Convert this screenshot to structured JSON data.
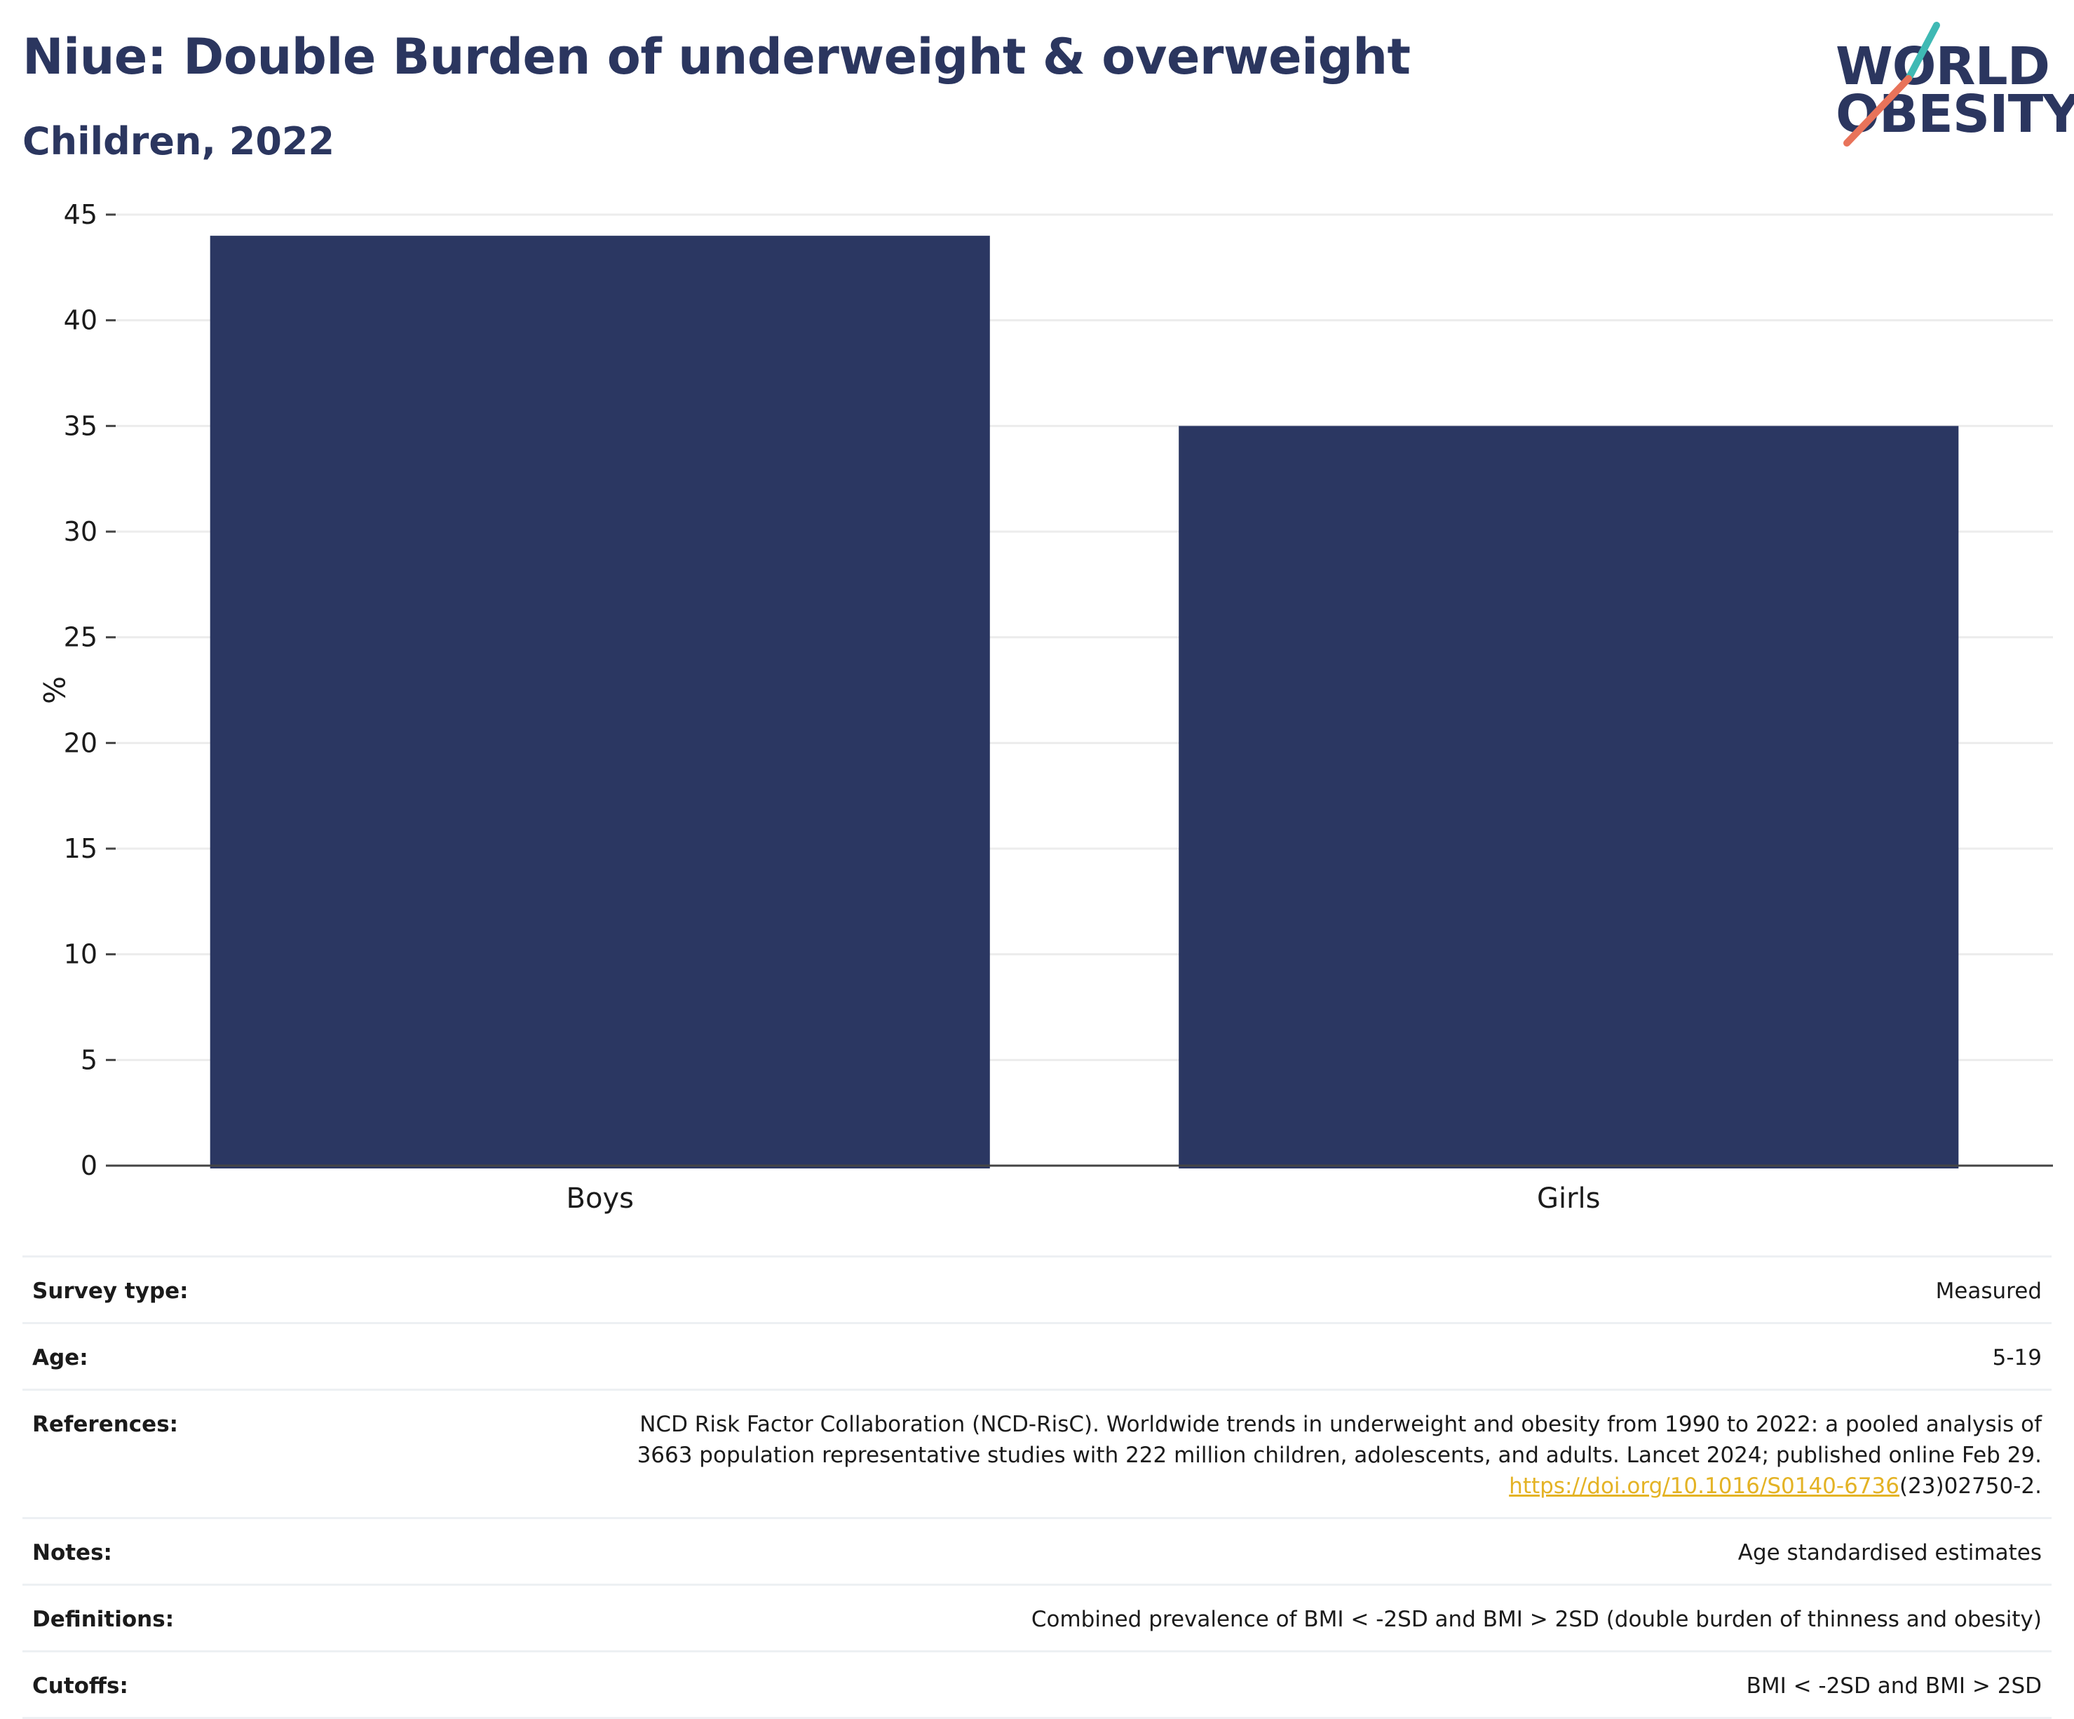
{
  "header": {
    "title": "Niue: Double Burden of underweight & overweight",
    "subtitle": "Children, 2022"
  },
  "logo": {
    "line1": "WORLD",
    "line2": "OBESITY",
    "colors": {
      "teal": "#3fb9b4",
      "coral": "#e8735a",
      "navy": "#2b365f"
    }
  },
  "colors": {
    "bar": "#2b3762",
    "grid": "#ececec",
    "axis": "#444444",
    "text": "#1b1b1b",
    "link": "#e4b325"
  },
  "chart_data": {
    "type": "bar",
    "categories": [
      "Boys",
      "Girls"
    ],
    "values": [
      44,
      35
    ],
    "ylabel": "%",
    "ylim": [
      0,
      45
    ],
    "yticks": [
      0,
      5,
      10,
      15,
      20,
      25,
      30,
      35,
      40,
      45
    ],
    "grid": true
  },
  "meta": {
    "survey_type": {
      "label": "Survey type:",
      "value": "Measured"
    },
    "age": {
      "label": "Age:",
      "value": "5-19"
    },
    "references": {
      "label": "References:",
      "line1": "NCD Risk Factor Collaboration (NCD-RisC). Worldwide trends in underweight and obesity from 1990 to 2022: a pooled analysis of",
      "line2": "3663 population representative studies with 222 million children, adolescents, and adults. Lancet 2024; published online Feb 29.",
      "link": "https://doi.org/10.1016/S0140-6736",
      "link_suffix": "(23)02750-2."
    },
    "notes": {
      "label": "Notes:",
      "value": "Age standardised estimates"
    },
    "definitions": {
      "label": "Definitions:",
      "value": "Combined prevalence of BMI < -2SD and BMI > 2SD (double burden of thinness and obesity)"
    },
    "cutoffs": {
      "label": "Cutoffs:",
      "value": "BMI < -2SD and BMI > 2SD"
    }
  }
}
